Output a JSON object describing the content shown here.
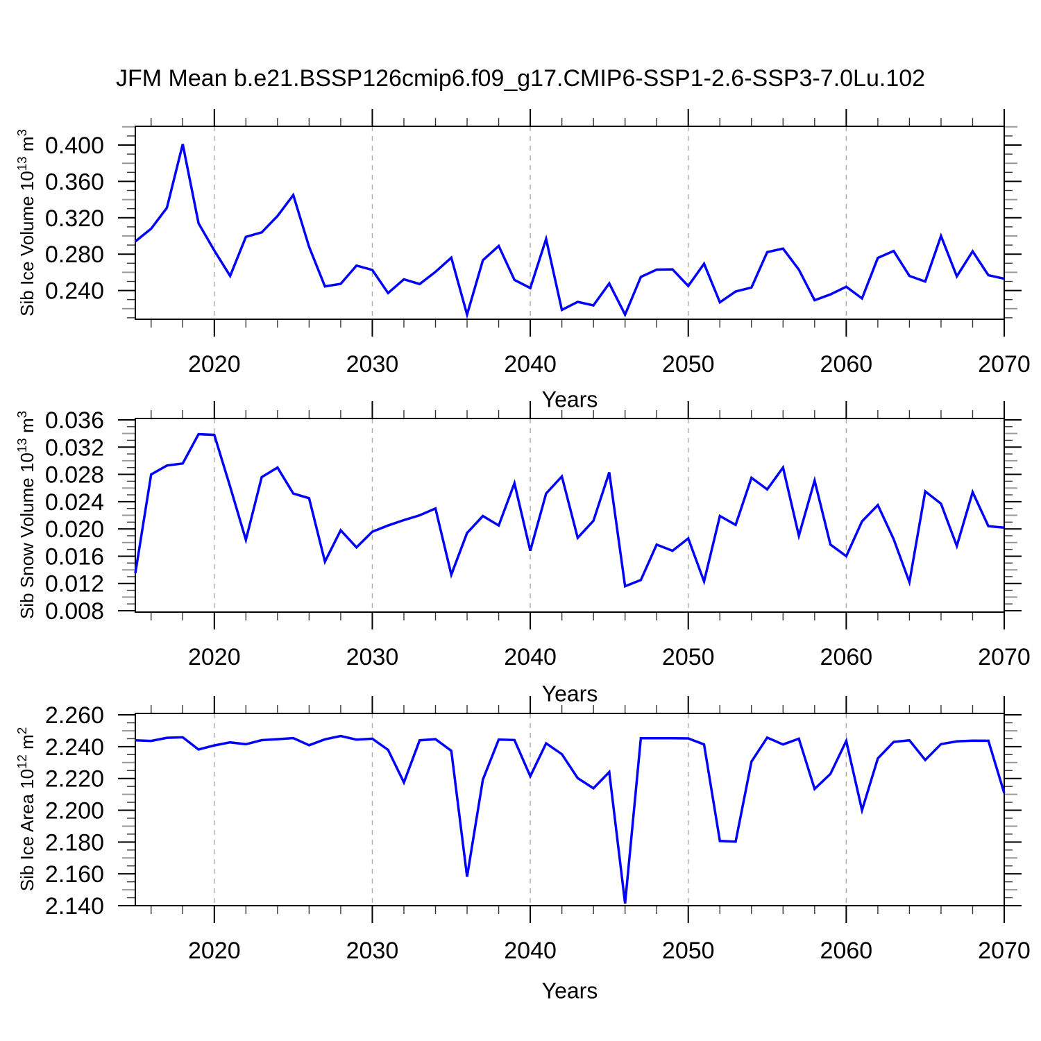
{
  "title": "JFM Mean b.e21.BSSP126cmip6.f09_g17.CMIP6-SSP1-2.6-SSP3-7.0Lu.102",
  "colors": {
    "line": "#0000ff",
    "frame": "#000000",
    "gridline": "#aaaaaa",
    "tick_major": "#000000",
    "tick_mid": "#999999",
    "tick_minor": "#333333",
    "text": "#000000",
    "background": "#ffffff"
  },
  "chart_data": [
    {
      "type": "line",
      "title": "",
      "xlabel": "Years",
      "ylabel_parts": [
        [
          "Sib Ice Volume 10",
          false
        ],
        [
          "13",
          true
        ],
        " ",
        [
          "m",
          false
        ],
        [
          "3",
          true
        ]
      ],
      "ylabel_plain": "Sib Ice Volume 10^13 m^3",
      "xlim": [
        2015,
        2070
      ],
      "ylim": [
        0.2084,
        0.4206
      ],
      "xtick_major_labels": [
        "2020",
        "2030",
        "2040",
        "2050",
        "2060",
        "2070"
      ],
      "xtick_minor_step": 2,
      "ytick_major_labels": [
        "0.240",
        "0.280",
        "0.320",
        "0.360",
        "0.400"
      ],
      "ytick_minor_step": 0.01,
      "grid": "vertical-dashed",
      "legend": "none",
      "x": [
        2015,
        2016,
        2017,
        2018,
        2019,
        2020,
        2021,
        2022,
        2023,
        2024,
        2025,
        2026,
        2027,
        2028,
        2029,
        2030,
        2031,
        2032,
        2033,
        2034,
        2035,
        2036,
        2037,
        2038,
        2039,
        2040,
        2041,
        2042,
        2043,
        2044,
        2045,
        2046,
        2047,
        2048,
        2049,
        2050,
        2051,
        2052,
        2053,
        2054,
        2055,
        2056,
        2057,
        2058,
        2059,
        2060,
        2061,
        2062,
        2063,
        2064,
        2065,
        2066,
        2067,
        2068,
        2069,
        2070
      ],
      "values": [
        0.294,
        0.308,
        0.331,
        0.401,
        0.314,
        0.284,
        0.256,
        0.299,
        0.304,
        0.322,
        0.345,
        0.288,
        0.2445,
        0.2473,
        0.2674,
        0.2626,
        0.2372,
        0.2524,
        0.2471,
        0.2605,
        0.2761,
        0.2135,
        0.2733,
        0.289,
        0.2517,
        0.2427,
        0.2967,
        0.2186,
        0.2275,
        0.2237,
        0.2478,
        0.2135,
        0.255,
        0.263,
        0.2633,
        0.245,
        0.2695,
        0.227,
        0.2389,
        0.2433,
        0.2822,
        0.2861,
        0.263,
        0.2293,
        0.2357,
        0.2441,
        0.2313,
        0.2759,
        0.2835,
        0.256,
        0.2499,
        0.3,
        0.2556,
        0.2831,
        0.2568,
        0.253
      ]
    },
    {
      "type": "line",
      "title": "",
      "xlabel": "Years",
      "ylabel_parts": [
        [
          "Sib Snow Volume 10",
          false
        ],
        [
          "13",
          true
        ],
        " ",
        [
          "m",
          false
        ],
        [
          "3",
          true
        ]
      ],
      "ylabel_plain": "Sib Snow Volume 10^13 m^3",
      "xlim": [
        2015,
        2070
      ],
      "ylim": [
        0.0078,
        0.0362
      ],
      "xtick_major_labels": [
        "2020",
        "2030",
        "2040",
        "2050",
        "2060",
        "2070"
      ],
      "xtick_minor_step": 2,
      "ytick_major_labels": [
        "0.008",
        "0.012",
        "0.016",
        "0.020",
        "0.024",
        "0.028",
        "0.032",
        "0.036"
      ],
      "ytick_minor_step": 0.001,
      "grid": "vertical-dashed",
      "legend": "none",
      "x": [
        2015,
        2016,
        2017,
        2018,
        2019,
        2020,
        2021,
        2022,
        2023,
        2024,
        2025,
        2026,
        2027,
        2028,
        2029,
        2030,
        2031,
        2032,
        2033,
        2034,
        2035,
        2036,
        2037,
        2038,
        2039,
        2040,
        2041,
        2042,
        2043,
        2044,
        2045,
        2046,
        2047,
        2048,
        2049,
        2050,
        2051,
        2052,
        2053,
        2054,
        2055,
        2056,
        2057,
        2058,
        2059,
        2060,
        2061,
        2062,
        2063,
        2064,
        2065,
        2066,
        2067,
        2068,
        2069,
        2070
      ],
      "values": [
        0.0135,
        0.028,
        0.0293,
        0.0296,
        0.0339,
        0.0338,
        0.0262,
        0.0184,
        0.0276,
        0.029,
        0.0252,
        0.0245,
        0.0152,
        0.0198,
        0.0173,
        0.0196,
        0.0205,
        0.0213,
        0.022,
        0.023,
        0.0133,
        0.0194,
        0.0219,
        0.0205,
        0.0267,
        0.0168,
        0.0252,
        0.0277,
        0.0187,
        0.0212,
        0.0283,
        0.0116,
        0.0125,
        0.0177,
        0.0168,
        0.0186,
        0.0123,
        0.0219,
        0.0206,
        0.0275,
        0.0258,
        0.029,
        0.019,
        0.0271,
        0.0177,
        0.016,
        0.0211,
        0.0235,
        0.0185,
        0.0122,
        0.0255,
        0.0237,
        0.0175,
        0.0254,
        0.0204,
        0.0202
      ]
    },
    {
      "type": "line",
      "title": "",
      "xlabel": "Years",
      "ylabel_parts": [
        [
          "Sib Ice Area 10",
          false
        ],
        [
          "12",
          true
        ],
        " ",
        [
          "m",
          false
        ],
        [
          "2",
          true
        ]
      ],
      "ylabel_plain": "Sib Ice Area 10^12 m^2",
      "xlim": [
        2015,
        2070
      ],
      "ylim": [
        2.14,
        2.2609
      ],
      "xtick_major_labels": [
        "2020",
        "2030",
        "2040",
        "2050",
        "2060",
        "2070"
      ],
      "xtick_minor_step": 2,
      "ytick_major_labels": [
        "2.140",
        "2.160",
        "2.180",
        "2.200",
        "2.220",
        "2.240",
        "2.260"
      ],
      "ytick_minor_step": 0.005,
      "grid": "vertical-dashed",
      "legend": "none",
      "x": [
        2015,
        2016,
        2017,
        2018,
        2019,
        2020,
        2021,
        2022,
        2023,
        2024,
        2025,
        2026,
        2027,
        2028,
        2029,
        2030,
        2031,
        2032,
        2033,
        2034,
        2035,
        2036,
        2037,
        2038,
        2039,
        2040,
        2041,
        2042,
        2043,
        2044,
        2045,
        2046,
        2047,
        2048,
        2049,
        2050,
        2051,
        2052,
        2053,
        2054,
        2055,
        2056,
        2057,
        2058,
        2059,
        2060,
        2061,
        2062,
        2063,
        2064,
        2065,
        2066,
        2067,
        2068,
        2069,
        2070
      ],
      "values": [
        2.244,
        2.2436,
        2.2456,
        2.2459,
        2.2382,
        2.2408,
        2.2427,
        2.2415,
        2.2441,
        2.2447,
        2.2454,
        2.2409,
        2.2446,
        2.2467,
        2.2444,
        2.245,
        2.238,
        2.2175,
        2.244,
        2.2447,
        2.2374,
        2.1582,
        2.2193,
        2.2445,
        2.2442,
        2.2214,
        2.2421,
        2.2353,
        2.2202,
        2.2138,
        2.224,
        2.1414,
        2.2453,
        2.2453,
        2.2453,
        2.2452,
        2.2414,
        2.1807,
        2.1803,
        2.2306,
        2.2457,
        2.2414,
        2.245,
        2.2134,
        2.2229,
        2.2436,
        2.2,
        2.2326,
        2.243,
        2.244,
        2.2316,
        2.2416,
        2.2433,
        2.2438,
        2.2437,
        2.2108
      ]
    }
  ]
}
